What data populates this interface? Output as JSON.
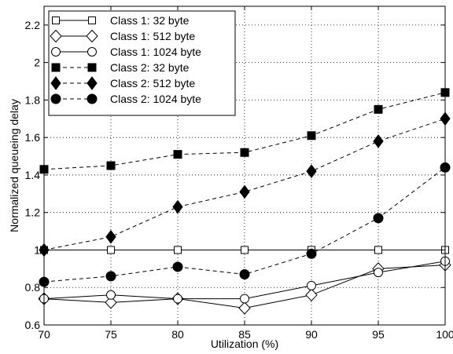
{
  "chart_data": {
    "type": "line",
    "title": "",
    "xlabel": "Utilization (%)",
    "ylabel": "Normalized queueing delay",
    "xlim": [
      70,
      100
    ],
    "ylim": [
      0.6,
      2.3
    ],
    "xticks": [
      70,
      75,
      80,
      85,
      90,
      95,
      100
    ],
    "yticks": [
      0.6,
      0.8,
      1,
      1.2,
      1.4,
      1.6,
      1.8,
      2,
      2.2
    ],
    "ytick_labels": [
      "0.6",
      "0.8",
      "1",
      "1.2",
      "1.4",
      "1.6",
      "1.8",
      "2",
      "2.2"
    ],
    "grid": true,
    "legend_position": "top-left",
    "x": [
      70,
      75,
      80,
      85,
      90,
      95,
      100
    ],
    "series": [
      {
        "name": "Class 1: 32 byte",
        "marker": "square-open",
        "line": "solid",
        "values": [
          1.0,
          1.0,
          1.0,
          1.0,
          1.0,
          1.0,
          1.0
        ]
      },
      {
        "name": "Class 1: 512 byte",
        "marker": "diamond-open",
        "line": "solid",
        "values": [
          0.74,
          0.72,
          0.74,
          0.69,
          0.76,
          0.9,
          0.92
        ]
      },
      {
        "name": "Class 1: 1024 byte",
        "marker": "circle-open",
        "line": "solid",
        "values": [
          0.74,
          0.76,
          0.74,
          0.74,
          0.81,
          0.88,
          0.94
        ]
      },
      {
        "name": "Class 2: 32 byte",
        "marker": "square-filled",
        "line": "dashed",
        "values": [
          1.43,
          1.45,
          1.51,
          1.52,
          1.61,
          1.75,
          1.84
        ]
      },
      {
        "name": "Class 2: 512 byte",
        "marker": "diamond-filled",
        "line": "dashed",
        "values": [
          1.0,
          1.07,
          1.23,
          1.31,
          1.42,
          1.58,
          1.7
        ]
      },
      {
        "name": "Class 2: 1024 byte",
        "marker": "circle-filled",
        "line": "dashed",
        "values": [
          0.83,
          0.86,
          0.91,
          0.87,
          0.98,
          1.17,
          1.44
        ]
      }
    ]
  }
}
